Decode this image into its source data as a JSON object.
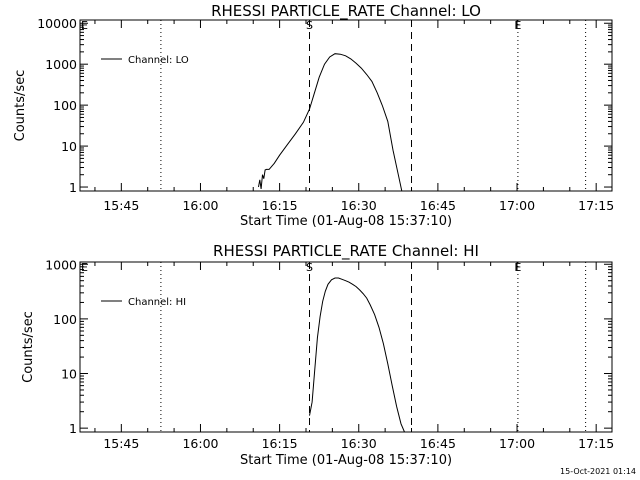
{
  "footer_timestamp": "15-Oct-2021 01:14",
  "chart_data": [
    {
      "type": "line",
      "title": "RHESSI PARTICLE_RATE Channel: LO",
      "xlabel": "Start Time (01-Aug-08 15:37:10)",
      "ylabel": "Counts/sec",
      "y_scale": "log",
      "xlim": [
        "15:37:10",
        "17:18:00"
      ],
      "ylim": [
        0.8,
        12000
      ],
      "x_ticks": [
        "15:45",
        "16:00",
        "16:15",
        "16:30",
        "16:45",
        "17:00",
        "17:15"
      ],
      "y_ticks": [
        "1",
        "10",
        "100",
        "1000",
        "10000"
      ],
      "legend": {
        "position": "top-left",
        "entries": [
          "Channel: LO"
        ]
      },
      "markers": [
        {
          "label": "S",
          "time": "16:20:40",
          "style": "dashed"
        },
        {
          "label": "",
          "time": "16:40:00",
          "style": "dashed"
        },
        {
          "label": "",
          "time": "15:52:30",
          "style": "dotted"
        },
        {
          "label": "E",
          "time": "17:00:10",
          "style": "dotted"
        },
        {
          "label": "",
          "time": "17:13:00",
          "style": "dotted"
        }
      ],
      "series": [
        {
          "name": "Channel: LO",
          "x": [
            "16:11:00",
            "16:11:15",
            "16:11:30",
            "16:11:45",
            "16:12:00",
            "16:12:15",
            "16:12:30",
            "16:13:00",
            "16:14:00",
            "16:15:00",
            "16:16:30",
            "16:18:00",
            "16:19:30",
            "16:20:40",
            "16:21:30",
            "16:22:30",
            "16:23:30",
            "16:24:30",
            "16:25:30",
            "16:26:30",
            "16:27:30",
            "16:28:30",
            "16:29:30",
            "16:30:30",
            "16:31:30",
            "16:32:30",
            "16:33:30",
            "16:34:30",
            "16:35:30",
            "16:36:30",
            "16:37:30",
            "16:38:10"
          ],
          "y": [
            1,
            1.5,
            0.9,
            2,
            1.6,
            2.6,
            2.7,
            2.7,
            3.8,
            6,
            11,
            20,
            38,
            80,
            180,
            480,
            1000,
            1500,
            1800,
            1750,
            1600,
            1350,
            1050,
            800,
            560,
            380,
            200,
            95,
            40,
            8,
            2,
            0.8
          ]
        }
      ]
    },
    {
      "type": "line",
      "title": "RHESSI PARTICLE_RATE Channel: HI",
      "xlabel": "Start Time (01-Aug-08 15:37:10)",
      "ylabel": "Counts/sec",
      "y_scale": "log",
      "xlim": [
        "15:37:10",
        "17:18:00"
      ],
      "ylim": [
        0.85,
        1100
      ],
      "x_ticks": [
        "15:45",
        "16:00",
        "16:15",
        "16:30",
        "16:45",
        "17:00",
        "17:15"
      ],
      "y_ticks": [
        "1",
        "10",
        "100",
        "1000"
      ],
      "legend": {
        "position": "top-left",
        "entries": [
          "Channel: HI"
        ]
      },
      "markers": [
        {
          "label": "S",
          "time": "16:20:40",
          "style": "dashed"
        },
        {
          "label": "",
          "time": "16:40:00",
          "style": "dashed"
        },
        {
          "label": "",
          "time": "15:52:30",
          "style": "dotted"
        },
        {
          "label": "E",
          "time": "17:00:10",
          "style": "dotted"
        },
        {
          "label": "",
          "time": "17:13:00",
          "style": "dotted"
        }
      ],
      "series": [
        {
          "name": "Channel: HI",
          "x": [
            "16:20:40",
            "16:21:10",
            "16:21:40",
            "16:22:10",
            "16:22:40",
            "16:23:10",
            "16:23:40",
            "16:24:10",
            "16:24:50",
            "16:25:30",
            "16:26:10",
            "16:26:50",
            "16:27:30",
            "16:28:10",
            "16:28:50",
            "16:29:30",
            "16:30:10",
            "16:30:50",
            "16:31:30",
            "16:32:10",
            "16:33:00",
            "16:33:50",
            "16:34:40",
            "16:35:30",
            "16:36:20",
            "16:37:10",
            "16:38:00",
            "16:38:40"
          ],
          "y": [
            1.7,
            3,
            12,
            45,
            110,
            210,
            320,
            430,
            520,
            560,
            560,
            530,
            500,
            470,
            430,
            390,
            340,
            290,
            240,
            180,
            120,
            70,
            35,
            15,
            6,
            2.5,
            1.2,
            0.85
          ]
        }
      ]
    }
  ]
}
